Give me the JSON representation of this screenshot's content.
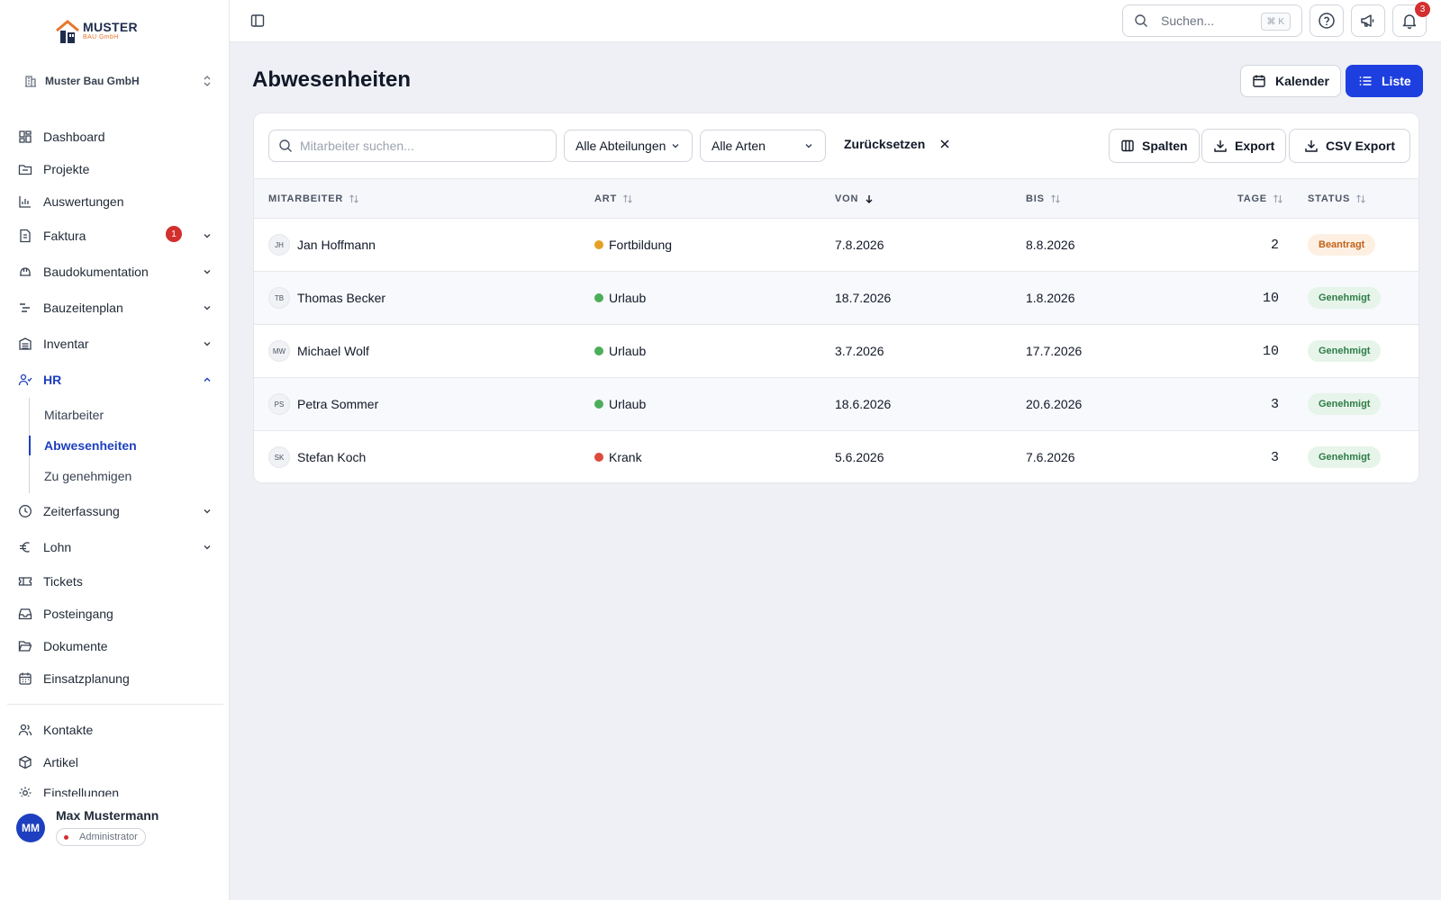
{
  "logo": {
    "title": "MUSTER",
    "subtitle": "BAU GmbH"
  },
  "company": "Muster Bau GmbH",
  "nav": [
    {
      "label": "Dashboard",
      "icon": "dashboard-icon"
    },
    {
      "label": "Projekte",
      "icon": "folder-icon"
    },
    {
      "label": "Auswertungen",
      "icon": "bar-chart-icon"
    },
    {
      "label": "Faktura",
      "icon": "file-icon",
      "badge": "1"
    },
    {
      "label": "Baudokumentation",
      "icon": "helmet-icon"
    },
    {
      "label": "Bauzeitenplan",
      "icon": "gantt-icon"
    },
    {
      "label": "Inventar",
      "icon": "inventory-icon"
    },
    {
      "label": "HR",
      "icon": "users-icon"
    },
    {
      "label": "Zeiterfassung",
      "icon": "clock-icon"
    },
    {
      "label": "Lohn",
      "icon": "euro-icon"
    },
    {
      "label": "Tickets",
      "icon": "ticket-icon"
    },
    {
      "label": "Posteingang",
      "icon": "inbox-icon"
    },
    {
      "label": "Dokumente",
      "icon": "folder-open-icon"
    },
    {
      "label": "Einsatzplanung",
      "icon": "calendar-icon"
    }
  ],
  "hr_sub": [
    "Mitarbeiter",
    "Abwesenheiten",
    "Zu genehmigen"
  ],
  "nav_bottom": [
    {
      "label": "Kontakte",
      "icon": "contacts-icon"
    },
    {
      "label": "Artikel",
      "icon": "box-icon"
    },
    {
      "label": "Einstellungen",
      "icon": "settings-icon"
    }
  ],
  "user": {
    "initials": "MM",
    "name": "Max Mustermann",
    "role": "Administrator"
  },
  "topbar": {
    "search_placeholder": "Suchen...",
    "shortcut": "⌘ K",
    "notifications": "3"
  },
  "page": {
    "title": "Abwesenheiten",
    "calendar_label": "Kalender",
    "list_label": "Liste"
  },
  "filters": {
    "search_placeholder": "Mitarbeiter suchen...",
    "department": "Alle Abteilungen",
    "type": "Alle Arten",
    "reset": "Zurücksetzen",
    "columns": "Spalten",
    "export": "Export",
    "csv_export": "CSV Export"
  },
  "table": {
    "headers": {
      "employee": "MITARBEITER",
      "type": "ART",
      "from": "VON",
      "to": "BIS",
      "days": "TAGE",
      "status": "STATUS"
    },
    "rows": [
      {
        "initials": "JH",
        "name": "Jan Hoffmann",
        "type": "Fortbildung",
        "type_color": "#e5a125",
        "from": "7.8.2026",
        "to": "8.8.2026",
        "days": "2",
        "status": "Beantragt",
        "status_bg": "#fdf0e2",
        "status_fg": "#c2621a"
      },
      {
        "initials": "TB",
        "name": "Thomas Becker",
        "type": "Urlaub",
        "type_color": "#4cae5a",
        "from": "18.7.2026",
        "to": "1.8.2026",
        "days": "10",
        "status": "Genehmigt",
        "status_bg": "#e6f4ea",
        "status_fg": "#2e7d46"
      },
      {
        "initials": "MW",
        "name": "Michael Wolf",
        "type": "Urlaub",
        "type_color": "#4cae5a",
        "from": "3.7.2026",
        "to": "17.7.2026",
        "days": "10",
        "status": "Genehmigt",
        "status_bg": "#e6f4ea",
        "status_fg": "#2e7d46"
      },
      {
        "initials": "PS",
        "name": "Petra Sommer",
        "type": "Urlaub",
        "type_color": "#4cae5a",
        "from": "18.6.2026",
        "to": "20.6.2026",
        "days": "3",
        "status": "Genehmigt",
        "status_bg": "#e6f4ea",
        "status_fg": "#2e7d46"
      },
      {
        "initials": "SK",
        "name": "Stefan Koch",
        "type": "Krank",
        "type_color": "#dc4a3e",
        "from": "5.6.2026",
        "to": "7.6.2026",
        "days": "3",
        "status": "Genehmigt",
        "status_bg": "#e6f4ea",
        "status_fg": "#2e7d46"
      }
    ]
  },
  "colors": {
    "accent": "#1e3fdf",
    "badge": "#d32f2f"
  }
}
